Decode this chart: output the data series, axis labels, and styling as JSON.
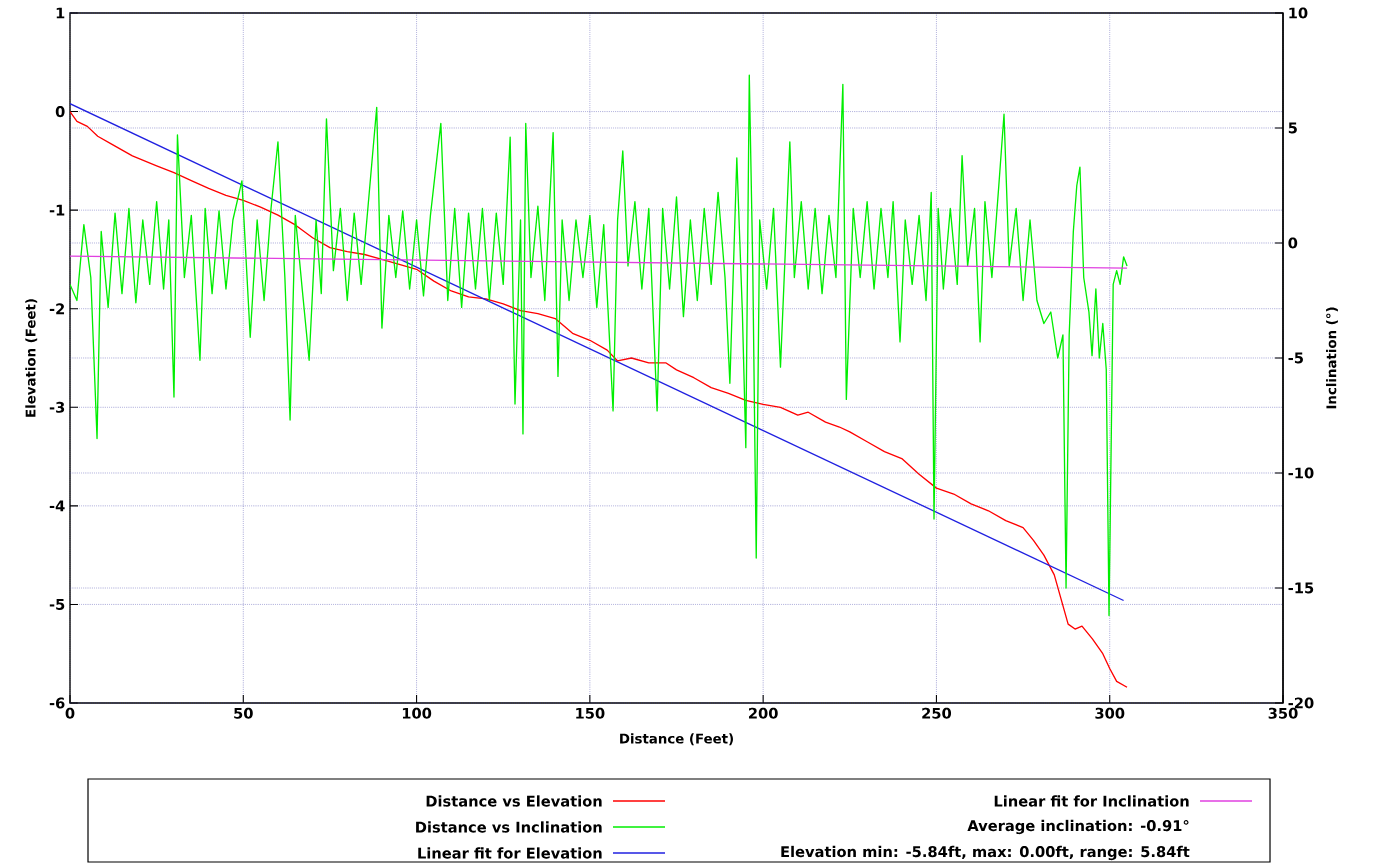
{
  "chart_data": {
    "type": "line",
    "xlabel": "Distance (Feet)",
    "ylabel": "Elevation (Feet)",
    "y2label": "Inclination (°)",
    "xlim": [
      0,
      350
    ],
    "xticks": [
      0,
      50,
      100,
      150,
      200,
      250,
      300,
      350
    ],
    "ylim": [
      -6,
      1
    ],
    "yticks": [
      -6,
      -5,
      -4,
      -3,
      -2,
      -1,
      0,
      1
    ],
    "y2lim": [
      -20,
      10
    ],
    "y2ticks": [
      -20,
      -15,
      -10,
      -5,
      0,
      5,
      10
    ],
    "grid": true,
    "legend": "bottom",
    "annotations": [
      "Average inclination: -0.91°",
      "Elevation min: -5.84ft, max: 0.00ft, range: 5.84ft"
    ],
    "series": [
      {
        "name": "Distance vs Elevation",
        "color": "#ff0000",
        "x": [
          0,
          2,
          5,
          8,
          12,
          18,
          25,
          30,
          35,
          40,
          45,
          50,
          55,
          60,
          65,
          70,
          75,
          80,
          85,
          90,
          95,
          100,
          105,
          110,
          115,
          120,
          125,
          130,
          135,
          140,
          145,
          150,
          155,
          158,
          162,
          167,
          172,
          175,
          180,
          185,
          190,
          195,
          200,
          205,
          210,
          213,
          218,
          222,
          225,
          230,
          235,
          240,
          245,
          250,
          255,
          260,
          265,
          270,
          275,
          278,
          281,
          284,
          286,
          288,
          290,
          292,
          295,
          298,
          300,
          302,
          305
        ],
        "values": [
          0,
          -0.1,
          -0.15,
          -0.25,
          -0.33,
          -0.45,
          -0.55,
          -0.62,
          -0.7,
          -0.78,
          -0.85,
          -0.9,
          -0.97,
          -1.05,
          -1.15,
          -1.28,
          -1.38,
          -1.42,
          -1.45,
          -1.5,
          -1.55,
          -1.6,
          -1.72,
          -1.82,
          -1.88,
          -1.9,
          -1.95,
          -2.02,
          -2.05,
          -2.1,
          -2.25,
          -2.32,
          -2.42,
          -2.53,
          -2.5,
          -2.55,
          -2.55,
          -2.62,
          -2.7,
          -2.8,
          -2.86,
          -2.93,
          -2.97,
          -3.0,
          -3.08,
          -3.05,
          -3.15,
          -3.2,
          -3.25,
          -3.35,
          -3.45,
          -3.52,
          -3.68,
          -3.82,
          -3.88,
          -3.98,
          -4.05,
          -4.15,
          -4.22,
          -4.35,
          -4.5,
          -4.7,
          -4.95,
          -5.2,
          -5.25,
          -5.22,
          -5.35,
          -5.5,
          -5.65,
          -5.78,
          -5.84
        ]
      },
      {
        "name": "Distance vs Inclination",
        "color": "#00ee00",
        "axis": "y2",
        "x": [
          0,
          2,
          4,
          6,
          7.8,
          9,
          11,
          13,
          15,
          17,
          19,
          21,
          23,
          25,
          27,
          28.5,
          30,
          31,
          33,
          35,
          37.5,
          39,
          41,
          43,
          45,
          47,
          49.6,
          52,
          54,
          56,
          58,
          60,
          62,
          63.5,
          65,
          67,
          69,
          71,
          72.5,
          74,
          76,
          78,
          80,
          82,
          84,
          86,
          88.5,
          90,
          92,
          94,
          96,
          98,
          100,
          102,
          104,
          107,
          109,
          111,
          113,
          115,
          117,
          119,
          121,
          123,
          125,
          127,
          128.4,
          130,
          130.7,
          131.5,
          133,
          135,
          137,
          139.4,
          140.8,
          142,
          144,
          146,
          148,
          150,
          152,
          154,
          156.7,
          158,
          159.5,
          161,
          163,
          165,
          167,
          169.4,
          171,
          173,
          175,
          177,
          179,
          181,
          183,
          185,
          187,
          189,
          190.4,
          192.4,
          194,
          195,
          196,
          197,
          198,
          199,
          201,
          203,
          205,
          207.7,
          209,
          211,
          213,
          215,
          217,
          219,
          221,
          223,
          224,
          226,
          228,
          230,
          232,
          234,
          236,
          237.5,
          239.5,
          241,
          243,
          245,
          247,
          248.5,
          249.3,
          250.5,
          252,
          254,
          256,
          257.4,
          259,
          261,
          262.6,
          264,
          266,
          268,
          269.5,
          271,
          273,
          275,
          277,
          279,
          281,
          283,
          285,
          286.5,
          287.4,
          288.3,
          289.5,
          290.5,
          291.4,
          292.5,
          294,
          294.9,
          296,
          297,
          298,
          299,
          299.8,
          301,
          302,
          303,
          304,
          305
        ],
        "values": [
          -1.8,
          -2.5,
          0.8,
          -1.5,
          -8.5,
          0.5,
          -2.8,
          1.3,
          -2.2,
          1.5,
          -2.6,
          1.0,
          -1.8,
          1.8,
          -2.0,
          1.0,
          -6.7,
          4.7,
          -1.5,
          1.2,
          -5.1,
          1.5,
          -2.2,
          1.4,
          -2.0,
          1.0,
          2.7,
          -4.1,
          1.0,
          -2.5,
          1.5,
          4.4,
          -1.5,
          -7.7,
          1.2,
          -2.0,
          -5.1,
          1.0,
          -2.2,
          5.4,
          -1.2,
          1.5,
          -2.5,
          1.3,
          -1.8,
          1.6,
          5.9,
          -3.7,
          1.2,
          -1.5,
          1.4,
          -2.0,
          1.0,
          -2.3,
          1.2,
          5.2,
          -2.5,
          1.5,
          -2.8,
          1.3,
          -2.0,
          1.5,
          -2.5,
          1.3,
          -1.8,
          4.6,
          -7.0,
          1.0,
          -8.3,
          5.2,
          -1.5,
          1.6,
          -2.5,
          4.8,
          -5.8,
          1.0,
          -2.5,
          1.0,
          -1.5,
          1.2,
          -2.8,
          0.8,
          -7.3,
          1.0,
          4.0,
          -1.0,
          1.8,
          -2.0,
          1.5,
          -7.3,
          1.5,
          -2.0,
          2.0,
          -3.2,
          1.0,
          -2.5,
          1.5,
          -1.8,
          2.2,
          -1.5,
          -6.1,
          3.7,
          -3.0,
          -8.9,
          7.3,
          -1.0,
          -13.7,
          1.0,
          -2.0,
          1.5,
          -5.4,
          4.4,
          -1.5,
          1.8,
          -2.0,
          1.5,
          -2.2,
          1.2,
          -1.5,
          6.9,
          -6.8,
          1.5,
          -1.5,
          1.8,
          -2.0,
          1.5,
          -1.5,
          1.8,
          -4.3,
          1.0,
          -1.8,
          1.2,
          -2.5,
          2.2,
          -12.0,
          1.5,
          -2.0,
          1.5,
          -1.8,
          3.8,
          -1.0,
          1.5,
          -4.3,
          1.8,
          -1.5,
          2.5,
          5.6,
          -1.0,
          1.5,
          -2.5,
          1.0,
          -2.5,
          -3.5,
          -3.0,
          -5.0,
          -4.0,
          -15.0,
          -4.0,
          0.5,
          2.5,
          3.3,
          -1.5,
          -3.0,
          -4.9,
          -2.0,
          -5.0,
          -3.5,
          -5.5,
          -16.2,
          -1.8,
          -1.2,
          -1.8,
          -0.6,
          -1.0
        ]
      },
      {
        "name": "Linear fit for Elevation",
        "color": "#2020e0",
        "x": [
          0,
          304
        ],
        "values": [
          0.08,
          -4.96
        ]
      },
      {
        "name": "Linear fit for Inclination",
        "color": "#e040e0",
        "axis": "y2",
        "x": [
          0,
          305
        ],
        "values": [
          -0.57,
          -1.09
        ]
      }
    ]
  }
}
